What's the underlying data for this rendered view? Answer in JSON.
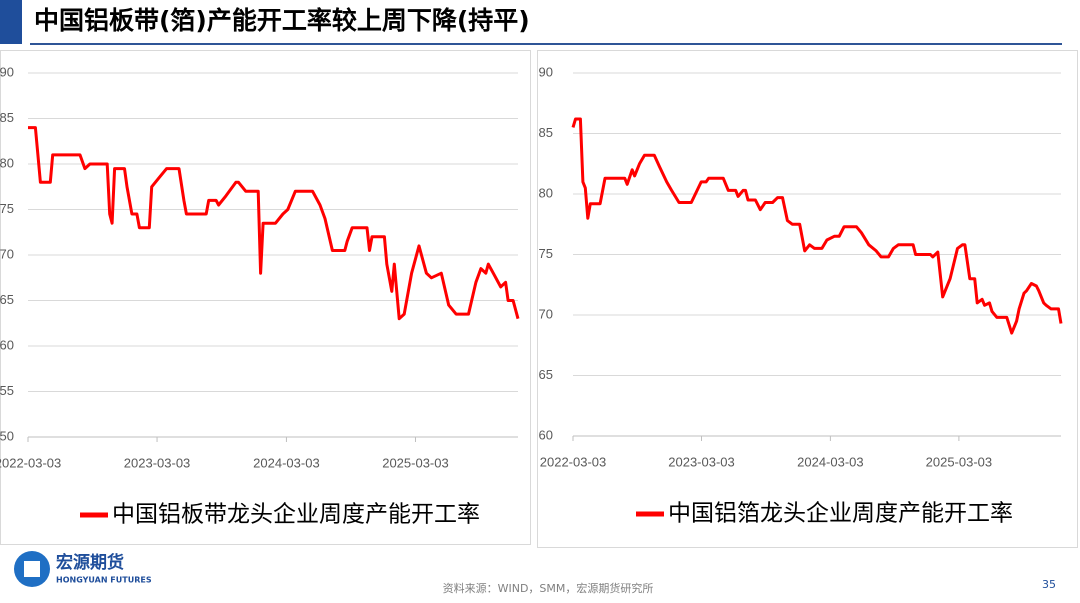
{
  "header": {
    "title": "中国铝板带(箔)产能开工率较上周下降(持平)"
  },
  "chart_data": [
    {
      "type": "line",
      "x": [
        "2022-03-03",
        "2022-03-24",
        "2022-03-31",
        "2022-04-07",
        "2022-05-05",
        "2022-05-12",
        "2022-07-28",
        "2022-08-11",
        "2022-08-25",
        "2022-10-13",
        "2022-10-20",
        "2022-10-27",
        "2022-11-03",
        "2022-12-01",
        "2022-12-08",
        "2022-12-22",
        "2023-01-05",
        "2023-01-12",
        "2023-02-09",
        "2023-02-16",
        "2023-03-09",
        "2023-03-30",
        "2023-05-04",
        "2023-05-18",
        "2023-05-25",
        "2023-07-20",
        "2023-07-27",
        "2023-08-17",
        "2023-08-24",
        "2023-09-14",
        "2023-10-12",
        "2023-10-19",
        "2023-11-09",
        "2023-12-14",
        "2023-12-21",
        "2023-12-28",
        "2024-02-01",
        "2024-02-22",
        "2024-03-07",
        "2024-03-28",
        "2024-05-16",
        "2024-06-06",
        "2024-06-20",
        "2024-07-11",
        "2024-08-15",
        "2024-08-22",
        "2024-09-05",
        "2024-10-17",
        "2024-10-24",
        "2024-10-31",
        "2024-12-05",
        "2024-12-12",
        "2024-12-26",
        "2025-01-02",
        "2025-01-16",
        "2025-01-30",
        "2025-02-20",
        "2025-03-13",
        "2025-04-03",
        "2025-04-17",
        "2025-05-15",
        "2025-06-05",
        "2025-06-26",
        "2025-07-31",
        "2025-08-21",
        "2025-09-04",
        "2025-09-18",
        "2025-09-25",
        "2025-10-09",
        "2025-10-30",
        "2025-11-13",
        "2025-11-20",
        "2025-12-04",
        "2025-12-18"
      ],
      "series": [
        {
          "name": "中国铝板带龙头企业周度产能开工率",
          "color": "#ff0000",
          "values": [
            84,
            84,
            81,
            78,
            78,
            81,
            81,
            79.5,
            80,
            80,
            74.5,
            73.5,
            79.5,
            79.5,
            77.5,
            74.5,
            74.5,
            73,
            73,
            77.5,
            78.5,
            79.5,
            79.5,
            76,
            74.5,
            74.5,
            76,
            76,
            75.5,
            76.5,
            78,
            78,
            77,
            77,
            68,
            73.5,
            73.5,
            74.5,
            75,
            77,
            77,
            75.5,
            74,
            70.5,
            70.5,
            71.5,
            73,
            73,
            70.5,
            72,
            72,
            69,
            66,
            69,
            63,
            63.5,
            68,
            71,
            68,
            67.5,
            68,
            64.5,
            63.5,
            63.5,
            67,
            68.5,
            68,
            69,
            68,
            66.5,
            67,
            65,
            65,
            63
          ]
        }
      ],
      "xlim": [
        "2022-03-03",
        "2025-12-18"
      ],
      "xticks": [
        "2022-03-03",
        "2023-03-03",
        "2024-03-03",
        "2025-03-03"
      ],
      "ylim": [
        50,
        90
      ],
      "yticks": [
        50,
        55,
        60,
        65,
        70,
        75,
        80,
        85,
        90
      ],
      "grid": true
    },
    {
      "type": "line",
      "x": [
        "2022-03-03",
        "2022-03-10",
        "2022-03-24",
        "2022-03-31",
        "2022-04-07",
        "2022-04-14",
        "2022-04-21",
        "2022-05-19",
        "2022-06-02",
        "2022-07-28",
        "2022-08-04",
        "2022-08-18",
        "2022-08-25",
        "2022-09-08",
        "2022-09-22",
        "2022-10-20",
        "2022-11-03",
        "2022-11-24",
        "2022-12-08",
        "2022-12-29",
        "2023-02-02",
        "2023-03-02",
        "2023-03-16",
        "2023-03-23",
        "2023-05-04",
        "2023-05-18",
        "2023-06-08",
        "2023-06-15",
        "2023-06-29",
        "2023-07-06",
        "2023-07-13",
        "2023-08-03",
        "2023-08-17",
        "2023-08-31",
        "2023-09-21",
        "2023-10-05",
        "2023-10-19",
        "2023-11-02",
        "2023-11-16",
        "2023-12-07",
        "2023-12-21",
        "2024-01-04",
        "2024-01-18",
        "2024-02-08",
        "2024-02-22",
        "2024-03-14",
        "2024-03-28",
        "2024-04-11",
        "2024-05-16",
        "2024-05-30",
        "2024-06-20",
        "2024-07-11",
        "2024-07-25",
        "2024-08-15",
        "2024-08-29",
        "2024-09-12",
        "2024-10-24",
        "2024-10-31",
        "2024-12-12",
        "2024-12-19",
        "2025-01-02",
        "2025-01-16",
        "2025-01-30",
        "2025-02-06",
        "2025-02-27",
        "2025-03-13",
        "2025-03-20",
        "2025-04-03",
        "2025-04-17",
        "2025-04-24",
        "2025-05-08",
        "2025-05-15",
        "2025-05-29",
        "2025-06-05",
        "2025-06-19",
        "2025-07-17",
        "2025-07-31",
        "2025-08-14",
        "2025-08-21",
        "2025-09-04",
        "2025-09-11",
        "2025-09-25",
        "2025-10-09",
        "2025-10-16",
        "2025-10-30",
        "2025-11-06",
        "2025-11-20",
        "2025-12-11",
        "2025-12-18"
      ],
      "series": [
        {
          "name": "中国铝箔龙头企业周度产能开工率",
          "color": "#ff0000",
          "values": [
            85.5,
            86.2,
            86.2,
            81,
            80.5,
            78,
            79.2,
            79.2,
            81.3,
            81.3,
            80.8,
            82,
            81.5,
            82.5,
            83.2,
            83.2,
            82.3,
            81,
            80.3,
            79.3,
            79.3,
            81,
            81,
            81.3,
            81.3,
            80.3,
            80.3,
            79.8,
            80.3,
            80.3,
            79.5,
            79.5,
            78.7,
            79.3,
            79.3,
            79.7,
            79.7,
            77.8,
            77.5,
            77.5,
            75.3,
            75.8,
            75.5,
            75.5,
            76.2,
            76.5,
            76.5,
            77.3,
            77.3,
            76.8,
            75.8,
            75.3,
            74.8,
            74.8,
            75.5,
            75.8,
            75.8,
            75,
            75,
            74.8,
            75.2,
            71.5,
            72.5,
            73,
            75.5,
            75.8,
            75.8,
            73,
            73,
            71,
            71.3,
            70.8,
            71,
            70.3,
            69.8,
            69.8,
            68.5,
            69.5,
            70.5,
            71.8,
            72,
            72.6,
            72.4,
            72,
            71,
            70.8,
            70.5,
            70.5,
            69.3
          ]
        }
      ],
      "xlim": [
        "2022-03-03",
        "2025-12-18"
      ],
      "xticks": [
        "2022-03-03",
        "2023-03-03",
        "2024-03-03",
        "2025-03-03"
      ],
      "ylim": [
        60,
        90
      ],
      "yticks": [
        60,
        65,
        70,
        75,
        80,
        85,
        90
      ],
      "grid": true
    }
  ],
  "logo": {
    "name": "宏源期货",
    "subtitle": "HONGYUAN FUTURES"
  },
  "footer": {
    "source": "资料来源：WIND，SMM，宏源期货研究所",
    "page": "35"
  }
}
